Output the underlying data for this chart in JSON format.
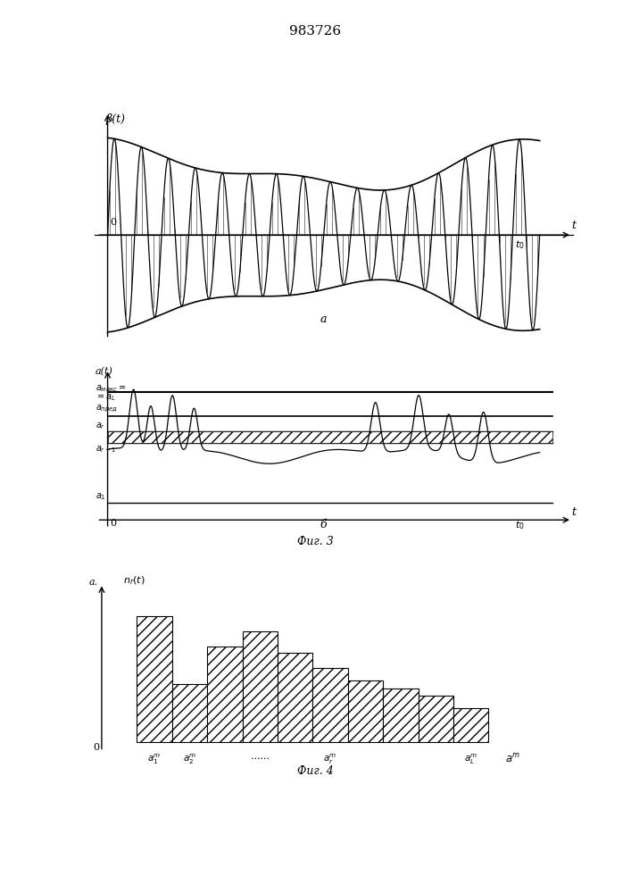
{
  "title": "983726",
  "fig3_label": "Фиг. 3",
  "fig4_label": "Фиг. 4",
  "top_ylabel": "β(t)",
  "top_xlabel": "t",
  "top_curve_label": "a",
  "bottom_ylabel": "a(t)",
  "bottom_xlabel": "t",
  "bottom_curve_label": "б",
  "hist_ylabel": "a.",
  "hist_ylabel2": "n_r(t)",
  "hist_values": [
    0.82,
    0.38,
    0.62,
    0.72,
    0.58,
    0.48,
    0.4,
    0.35,
    0.3,
    0.22
  ],
  "background_color": "#ffffff",
  "line_color": "#000000"
}
